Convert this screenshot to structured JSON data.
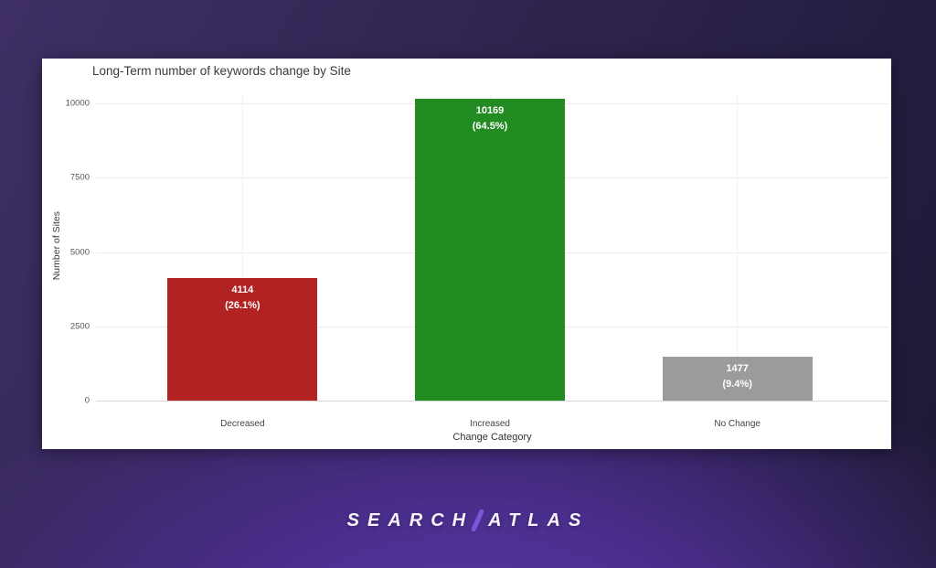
{
  "logo": {
    "text_left": "SEARCH",
    "text_right": "ATLAS",
    "text_color": "#f6f3fc",
    "slash_color": "#7a57d8"
  },
  "background": {
    "glow_color": "#5a38ab",
    "dark_corner_color": "#1f1935"
  },
  "chart_data": {
    "type": "bar",
    "title": "Long-Term number of keywords change by Site",
    "xlabel": "Change Category",
    "ylabel": "Number of Sites",
    "categories": [
      "Decreased",
      "Increased",
      "No Change"
    ],
    "values": [
      4114,
      10169,
      1477
    ],
    "percent_labels": [
      "(26.1%)",
      "(64.5%)",
      "(9.4%)"
    ],
    "bar_colors": [
      "#b22222",
      "#228b22",
      "#9b9b9b"
    ],
    "yticks": [
      0,
      2500,
      5000,
      7500,
      10000
    ],
    "ylim": [
      0,
      10400
    ],
    "grid": true,
    "plot_bg": "#ffffff",
    "legend": "none"
  }
}
